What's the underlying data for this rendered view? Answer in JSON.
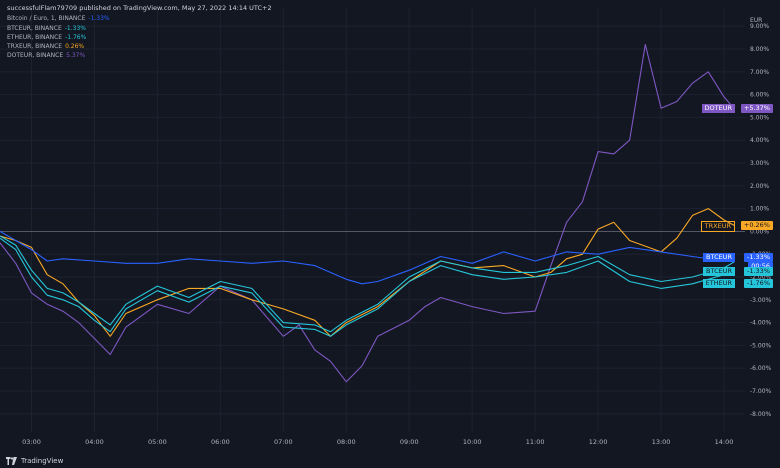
{
  "header": {
    "published": "successfulFlam79709 published on TradingView.com, May 27, 2022 14:14 UTC+2"
  },
  "legend": [
    {
      "label": "Bitcoin / Euro, 1, BINANCE",
      "value": "-1.33%",
      "color": "#2962ff"
    },
    {
      "label": "BTCEUR, BINANCE",
      "value": "-1.33%",
      "color": "#26c6da"
    },
    {
      "label": "ETHEUR, BINANCE",
      "value": "-1.76%",
      "color": "#26c6da"
    },
    {
      "label": "TRXEUR, BINANCE",
      "value": "0.26%",
      "color": "#f9a825"
    },
    {
      "label": "DOTEUR, BINANCE",
      "value": "5.37%",
      "color": "#7e57c2"
    }
  ],
  "price_tags": [
    {
      "name": "DOTEUR",
      "value": "+5.37%",
      "color": "#7e57c2",
      "y": 5.37
    },
    {
      "name": "TRXEUR",
      "value": "+0.26%",
      "color": "#f9a825",
      "y": 0.26
    },
    {
      "name": "BTCEUR",
      "value": "-1.33%",
      "color": "#2962ff",
      "y": -1.33,
      "countdown": "00:56"
    },
    {
      "name": "BTCEUR",
      "value": "-1.33%",
      "color": "#26c6da",
      "y": -1.33
    },
    {
      "name": "ETHEUR",
      "value": "-1.76%",
      "color": "#26c6da",
      "y": -1.76
    }
  ],
  "axis": {
    "currency": "EUR",
    "y_ticks": [
      "9.00%",
      "8.00%",
      "7.00%",
      "6.00%",
      "5.00%",
      "4.00%",
      "3.00%",
      "2.00%",
      "1.00%",
      "0.00%",
      "-1.00%",
      "-2.00%",
      "-3.00%",
      "-4.00%",
      "-5.00%",
      "-6.00%",
      "-7.00%",
      "-8.00%"
    ],
    "x_ticks": [
      "03:00",
      "04:00",
      "05:00",
      "06:00",
      "07:00",
      "08:00",
      "09:00",
      "10:00",
      "11:00",
      "12:00",
      "13:00",
      "14:00"
    ]
  },
  "footer": {
    "brand": "TradingView"
  },
  "chart_data": {
    "type": "line",
    "ylim": [
      -8.8,
      9.8
    ],
    "x_range": [
      "02:30",
      "14:20"
    ],
    "baseline": 0,
    "grid": true,
    "legend_position": "top-left",
    "series": [
      {
        "name": "Bitcoin / Euro",
        "color": "#2962ff",
        "x": [
          "02:30",
          "02:45",
          "03:00",
          "03:15",
          "03:30",
          "04:00",
          "04:30",
          "05:00",
          "05:30",
          "06:00",
          "06:30",
          "07:00",
          "07:30",
          "08:00",
          "08:15",
          "08:30",
          "09:00",
          "09:30",
          "10:00",
          "10:30",
          "11:00",
          "11:30",
          "12:00",
          "12:30",
          "13:00",
          "13:30",
          "14:00",
          "14:10"
        ],
        "y": [
          0.0,
          -0.4,
          -0.8,
          -1.3,
          -1.2,
          -1.3,
          -1.4,
          -1.4,
          -1.2,
          -1.3,
          -1.4,
          -1.3,
          -1.5,
          -2.1,
          -2.3,
          -2.2,
          -1.7,
          -1.1,
          -1.4,
          -0.9,
          -1.3,
          -0.9,
          -1.0,
          -0.7,
          -0.9,
          -1.1,
          -1.3,
          -1.33
        ]
      },
      {
        "name": "BTCEUR",
        "color": "#26c6da",
        "x": [
          "02:30",
          "02:45",
          "03:00",
          "03:15",
          "03:30",
          "03:45",
          "04:00",
          "04:15",
          "04:30",
          "05:00",
          "05:30",
          "06:00",
          "06:30",
          "07:00",
          "07:30",
          "07:45",
          "08:00",
          "08:30",
          "09:00",
          "09:30",
          "10:00",
          "10:30",
          "11:00",
          "11:30",
          "12:00",
          "12:30",
          "13:00",
          "13:30",
          "14:00",
          "14:10"
        ],
        "y": [
          -0.2,
          -0.6,
          -1.7,
          -2.5,
          -2.7,
          -3.1,
          -3.6,
          -4.1,
          -3.2,
          -2.4,
          -2.9,
          -2.2,
          -2.5,
          -4.0,
          -4.1,
          -4.4,
          -3.9,
          -3.2,
          -2.0,
          -1.3,
          -1.6,
          -1.8,
          -1.8,
          -1.5,
          -1.1,
          -1.9,
          -2.2,
          -2.0,
          -1.6,
          -1.33
        ]
      },
      {
        "name": "ETHEUR",
        "color": "#26c6da",
        "x": [
          "02:30",
          "02:45",
          "03:00",
          "03:15",
          "03:30",
          "03:45",
          "04:00",
          "04:15",
          "04:30",
          "05:00",
          "05:30",
          "06:00",
          "06:30",
          "07:00",
          "07:30",
          "07:45",
          "08:00",
          "08:30",
          "09:00",
          "09:30",
          "10:00",
          "10:30",
          "11:00",
          "11:30",
          "12:00",
          "12:30",
          "13:00",
          "13:30",
          "14:00",
          "14:10"
        ],
        "y": [
          -0.3,
          -0.8,
          -2.0,
          -2.8,
          -3.0,
          -3.3,
          -3.9,
          -4.4,
          -3.4,
          -2.6,
          -3.1,
          -2.4,
          -2.7,
          -4.2,
          -4.3,
          -4.6,
          -4.1,
          -3.4,
          -2.2,
          -1.5,
          -1.9,
          -2.1,
          -2.0,
          -1.8,
          -1.3,
          -2.2,
          -2.5,
          -2.3,
          -1.9,
          -1.76
        ]
      },
      {
        "name": "TRXEUR",
        "color": "#f9a825",
        "x": [
          "02:30",
          "02:45",
          "03:00",
          "03:15",
          "03:30",
          "03:45",
          "04:00",
          "04:15",
          "04:30",
          "05:00",
          "05:30",
          "06:00",
          "06:30",
          "07:00",
          "07:30",
          "07:45",
          "08:00",
          "08:30",
          "09:00",
          "09:30",
          "10:00",
          "10:30",
          "11:00",
          "11:15",
          "11:30",
          "11:45",
          "12:00",
          "12:15",
          "12:30",
          "13:00",
          "13:15",
          "13:30",
          "13:45",
          "14:00",
          "14:10"
        ],
        "y": [
          -0.2,
          -0.4,
          -0.7,
          -1.9,
          -2.3,
          -3.1,
          -3.7,
          -4.6,
          -3.6,
          -3.0,
          -2.5,
          -2.5,
          -3.0,
          -3.4,
          -3.9,
          -4.6,
          -4.0,
          -3.3,
          -2.2,
          -1.3,
          -1.6,
          -1.5,
          -2.0,
          -1.8,
          -1.2,
          -1.0,
          0.1,
          0.4,
          -0.4,
          -0.9,
          -0.3,
          0.7,
          1.0,
          0.5,
          0.26
        ]
      },
      {
        "name": "DOTEUR",
        "color": "#7e57c2",
        "x": [
          "02:30",
          "02:45",
          "03:00",
          "03:15",
          "03:30",
          "03:45",
          "04:00",
          "04:15",
          "04:30",
          "05:00",
          "05:30",
          "06:00",
          "06:30",
          "07:00",
          "07:15",
          "07:30",
          "07:45",
          "08:00",
          "08:15",
          "08:30",
          "09:00",
          "09:15",
          "09:30",
          "10:00",
          "10:30",
          "11:00",
          "11:15",
          "11:30",
          "11:45",
          "12:00",
          "12:15",
          "12:30",
          "12:45",
          "13:00",
          "13:15",
          "13:30",
          "13:45",
          "14:00",
          "14:10"
        ],
        "y": [
          -0.5,
          -1.4,
          -2.7,
          -3.2,
          -3.5,
          -4.0,
          -4.7,
          -5.4,
          -4.2,
          -3.2,
          -3.6,
          -2.4,
          -3.0,
          -4.6,
          -4.1,
          -5.2,
          -5.7,
          -6.6,
          -5.9,
          -4.6,
          -3.9,
          -3.3,
          -2.9,
          -3.3,
          -3.6,
          -3.5,
          -1.5,
          0.4,
          1.3,
          3.5,
          3.4,
          4.0,
          8.2,
          5.4,
          5.7,
          6.5,
          7.0,
          5.9,
          5.37
        ]
      }
    ]
  }
}
